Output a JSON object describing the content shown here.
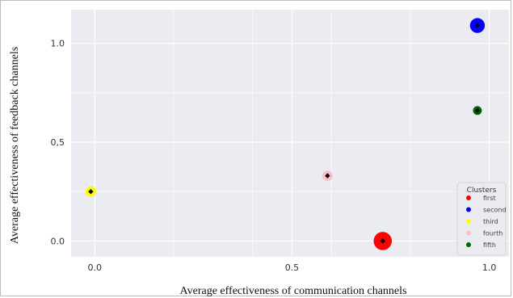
{
  "chart_data": {
    "type": "scatter",
    "title": "",
    "xlabel": "Average effectiveness of communication channels",
    "ylabel": "Average effectiveness of feedback channels",
    "xlim": [
      -0.06,
      1.05
    ],
    "ylim": [
      -0.08,
      1.17
    ],
    "grid": true,
    "background": "#ebebf2",
    "grid_color": "#ffffff",
    "x_ticks": [
      {
        "value": 0.0,
        "label": "0.0"
      },
      {
        "value": 0.5,
        "label": "0.5"
      },
      {
        "value": 1.0,
        "label": "1.0"
      }
    ],
    "y_ticks": [
      {
        "value": 0.0,
        "label": "0.0"
      },
      {
        "value": 0.5,
        "label": "0,5"
      },
      {
        "value": 1.0,
        "label": "1.0"
      }
    ],
    "x_minor_grid": [
      0.2,
      0.4,
      0.6,
      0.8
    ],
    "y_minor_grid": [
      0.25,
      0.75
    ],
    "legend": {
      "title": "Clusters",
      "placement": "lower-right"
    },
    "series": [
      {
        "name": "first",
        "color": "#ff0000",
        "points": [
          {
            "x": 0.73,
            "y": 0.0,
            "size": 3
          }
        ]
      },
      {
        "name": "second",
        "color": "#0000ff",
        "points": [
          {
            "x": 0.97,
            "y": 1.09,
            "size": 2
          }
        ]
      },
      {
        "name": "third",
        "color": "#ffff00",
        "points": [
          {
            "x": -0.01,
            "y": 0.25,
            "size": 1
          }
        ]
      },
      {
        "name": "fourth",
        "color": "#ffc0cb",
        "points": [
          {
            "x": 0.59,
            "y": 0.33,
            "size": 1
          }
        ]
      },
      {
        "name": "fifth",
        "color": "#006400",
        "points": [
          {
            "x": 0.97,
            "y": 0.66,
            "size": 0.7
          }
        ]
      }
    ]
  }
}
